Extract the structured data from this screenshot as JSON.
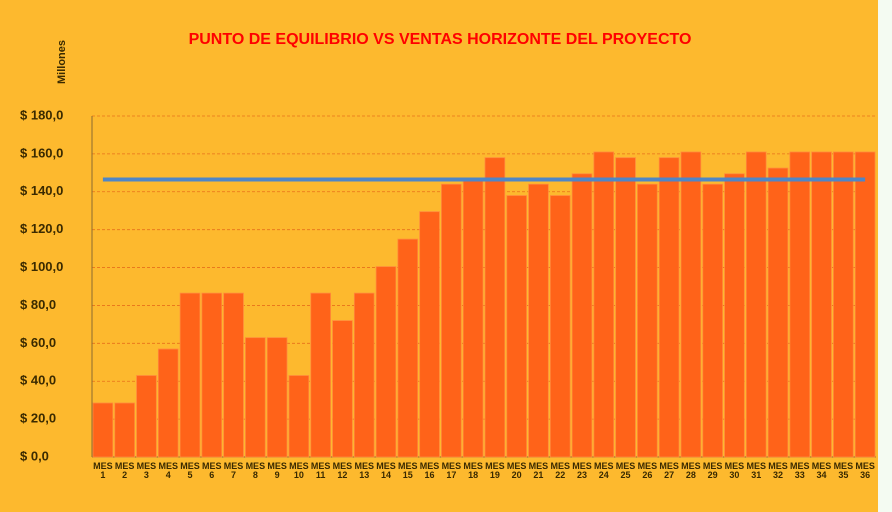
{
  "chart_data": {
    "type": "bar",
    "title": "PUNTO DE EQUILIBRIO VS VENTAS  HORIZONTE DEL PROYECTO",
    "y_label": "Millones",
    "categories": [
      "MES 1",
      "MES 2",
      "MES 3",
      "MES 4",
      "MES 5",
      "MES 6",
      "MES 7",
      "MES 8",
      "MES 9",
      "MES 10",
      "MES 11",
      "MES 12",
      "MES 13",
      "MES 14",
      "MES 15",
      "MES 16",
      "MES 17",
      "MES 18",
      "MES 19",
      "MES 20",
      "MES 21",
      "MES 22",
      "MES 23",
      "MES 24",
      "MES 25",
      "MES 26",
      "MES 27",
      "MES 28",
      "MES 29",
      "MES 30",
      "MES 31",
      "MES 32",
      "MES 33",
      "MES 34",
      "MES 35",
      "MES 36"
    ],
    "series": [
      {
        "type": "bar",
        "color": "#ff6319",
        "values": [
          28.5,
          28.5,
          43,
          57,
          86.5,
          86.5,
          86.5,
          63,
          63,
          43,
          86.5,
          72,
          86.5,
          100.5,
          115,
          129.5,
          144,
          146,
          158,
          138,
          144,
          138,
          149.5,
          161,
          158,
          144,
          158,
          161,
          144,
          149.5,
          161,
          152.5,
          161,
          161,
          161,
          161
        ]
      },
      {
        "type": "line",
        "color": "#4f86c6",
        "values": [
          146.5,
          146.5,
          146.5,
          146.5,
          146.5,
          146.5,
          146.5,
          146.5,
          146.5,
          146.5,
          146.5,
          146.5,
          146.5,
          146.5,
          146.5,
          146.5,
          146.5,
          146.5,
          146.5,
          146.5,
          146.5,
          146.5,
          146.5,
          146.5,
          146.5,
          146.5,
          146.5,
          146.5,
          146.5,
          146.5,
          146.5,
          146.5,
          146.5,
          146.5,
          146.5,
          146.5
        ]
      }
    ],
    "ylim": [
      0,
      180
    ],
    "yticks": [
      {
        "value": 0,
        "label": "$ 0,0"
      },
      {
        "value": 20,
        "label": "$ 20,0"
      },
      {
        "value": 40,
        "label": "$ 40,0"
      },
      {
        "value": 60,
        "label": "$ 60,0"
      },
      {
        "value": 80,
        "label": "$ 80,0"
      },
      {
        "value": 100,
        "label": "$ 100,0"
      },
      {
        "value": 120,
        "label": "$ 120,0"
      },
      {
        "value": 140,
        "label": "$ 140,0"
      },
      {
        "value": 160,
        "label": "$ 160,0"
      },
      {
        "value": 180,
        "label": "$ 180,0"
      }
    ],
    "grid": true
  }
}
